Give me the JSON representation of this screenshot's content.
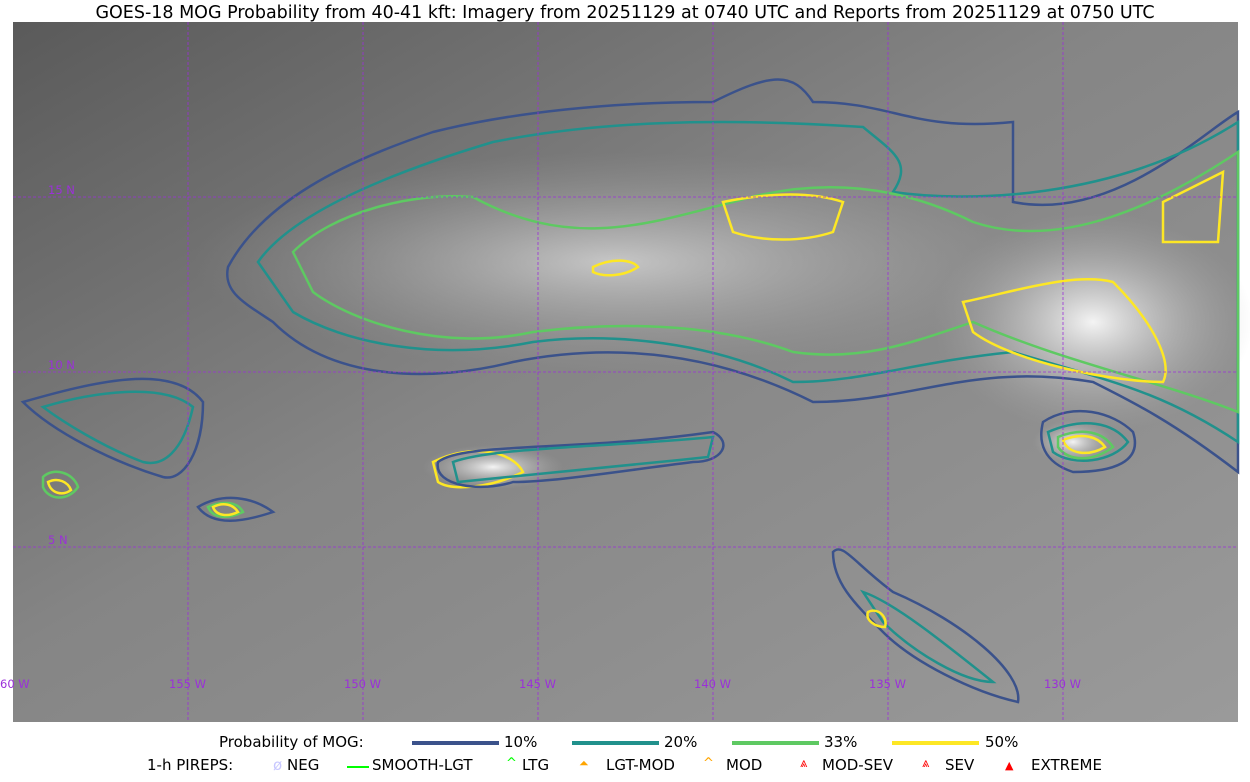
{
  "title": "GOES-18 MOG Probability from 40-41 kft: Imagery from 20251129 at 0740 UTC and Reports from 20251129 at 0750 UTC",
  "map": {
    "lon_labels": [
      "60 W",
      "155 W",
      "150 W",
      "145 W",
      "140 W",
      "135 W",
      "130 W"
    ],
    "lat_labels": [
      "15 N",
      "10 N",
      "5 N"
    ],
    "grid_color": "#9b30d9"
  },
  "legend": {
    "probability": {
      "label": "Probability of MOG:",
      "items": [
        {
          "label": "10%",
          "color": "#3b528b"
        },
        {
          "label": "20%",
          "color": "#21918c"
        },
        {
          "label": "33%",
          "color": "#5ec962"
        },
        {
          "label": "50%",
          "color": "#fde725"
        }
      ]
    },
    "pireps": {
      "label": "1-h PIREPS:",
      "items": [
        {
          "label": "NEG",
          "icon": "neg-icon",
          "color": "#c8c8ff"
        },
        {
          "label": "SMOOTH-LGT",
          "icon": "line-icon",
          "color": "#00ff00"
        },
        {
          "label": "LTG",
          "icon": "caret-icon",
          "color": "#00ff00"
        },
        {
          "label": "LGT-MOD",
          "icon": "triangle-caret-icon",
          "color": "#ffa500"
        },
        {
          "label": "MOD",
          "icon": "caret-icon",
          "color": "#ffa500"
        },
        {
          "label": "MOD-SEV",
          "icon": "double-caret-icon",
          "color": "#ff0000"
        },
        {
          "label": "SEV",
          "icon": "double-caret-icon",
          "color": "#ff0000"
        },
        {
          "label": "EXTREME",
          "icon": "filled-triangle-icon",
          "color": "#ff0000"
        }
      ]
    }
  }
}
